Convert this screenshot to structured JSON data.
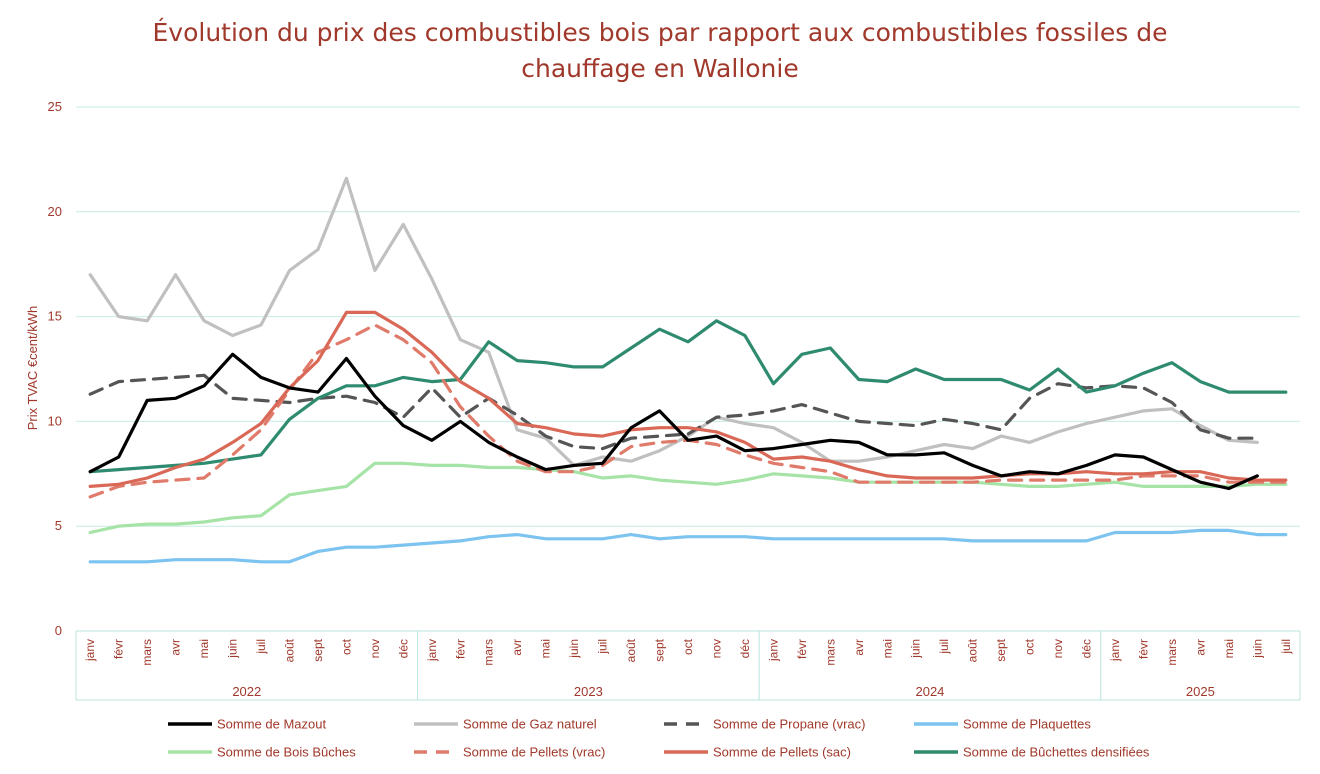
{
  "chart_data": {
    "type": "line",
    "title": "Évolution du prix des combustibles bois par rapport aux combustibles fossiles de chauffage en Wallonie",
    "title_lines": [
      "Évolution du prix des combustibles bois par rapport aux combustibles fossiles de",
      "chauffage en Wallonie"
    ],
    "ylabel": "Prix TVAC €cent/kWh",
    "xlabel": "",
    "ylim": [
      0,
      25
    ],
    "yticks": [
      "0",
      "5",
      "10",
      "15",
      "20",
      "25"
    ],
    "grid": true,
    "legend_position": "bottom",
    "months": [
      "janv",
      "févr",
      "mars",
      "avr",
      "mai",
      "juin",
      "juil",
      "août",
      "sept",
      "oct",
      "nov",
      "déc",
      "janv",
      "févr",
      "mars",
      "avr",
      "mai",
      "juin",
      "juil",
      "août",
      "sept",
      "oct",
      "nov",
      "déc",
      "janv",
      "févr",
      "mars",
      "avr",
      "mai",
      "juin",
      "juil",
      "août",
      "sept",
      "oct",
      "nov",
      "déc",
      "janv",
      "févr",
      "mars",
      "avr",
      "mai",
      "juin",
      "juil"
    ],
    "years": [
      {
        "label": "2022",
        "count": 12
      },
      {
        "label": "2023",
        "count": 12
      },
      {
        "label": "2024",
        "count": 12
      },
      {
        "label": "2025",
        "count": 7
      }
    ],
    "series": [
      {
        "name": "Somme de Mazout",
        "color": "#000000",
        "dash": false,
        "values": [
          7.6,
          8.3,
          11.0,
          11.1,
          11.7,
          13.2,
          12.1,
          11.6,
          11.4,
          13.0,
          11.2,
          9.8,
          9.1,
          10.0,
          9.0,
          8.3,
          7.7,
          7.9,
          8.0,
          9.7,
          10.5,
          9.1,
          9.3,
          8.6,
          8.7,
          8.9,
          9.1,
          9.0,
          8.4,
          8.4,
          8.5,
          7.9,
          7.4,
          7.6,
          7.5,
          7.9,
          8.4,
          8.3,
          7.7,
          7.1,
          6.8,
          7.4,
          null
        ]
      },
      {
        "name": "Somme de Gaz naturel",
        "color": "#c0c0c0",
        "dash": false,
        "values": [
          17.0,
          15.0,
          14.8,
          17.0,
          14.8,
          14.1,
          14.6,
          17.2,
          18.2,
          21.6,
          17.2,
          19.4,
          16.8,
          13.9,
          13.3,
          9.6,
          9.2,
          7.9,
          8.3,
          8.1,
          8.6,
          9.3,
          10.2,
          9.9,
          9.7,
          9.0,
          8.1,
          8.1,
          8.3,
          8.6,
          8.9,
          8.7,
          9.3,
          9.0,
          9.5,
          9.9,
          10.2,
          10.5,
          10.6,
          9.8,
          9.1,
          9.0,
          null
        ]
      },
      {
        "name": "Somme de Propane (vrac)",
        "color": "#555555",
        "dash": true,
        "values": [
          11.3,
          11.9,
          12.0,
          12.1,
          12.2,
          11.1,
          11.0,
          10.9,
          11.1,
          11.2,
          10.9,
          10.2,
          11.6,
          10.2,
          11.1,
          10.3,
          9.3,
          8.8,
          8.7,
          9.2,
          9.3,
          9.4,
          10.2,
          10.3,
          10.5,
          10.8,
          10.4,
          10.0,
          9.9,
          9.8,
          10.1,
          9.9,
          9.6,
          11.1,
          11.8,
          11.6,
          11.7,
          11.6,
          10.9,
          9.6,
          9.2,
          9.2,
          null
        ]
      },
      {
        "name": "Somme de Plaquettes",
        "color": "#7cc3f0",
        "dash": false,
        "values": [
          3.3,
          3.3,
          3.3,
          3.4,
          3.4,
          3.4,
          3.3,
          3.3,
          3.8,
          4.0,
          4.0,
          4.1,
          4.2,
          4.3,
          4.5,
          4.6,
          4.4,
          4.4,
          4.4,
          4.6,
          4.4,
          4.5,
          4.5,
          4.5,
          4.4,
          4.4,
          4.4,
          4.4,
          4.4,
          4.4,
          4.4,
          4.3,
          4.3,
          4.3,
          4.3,
          4.3,
          4.7,
          4.7,
          4.7,
          4.8,
          4.8,
          4.6,
          4.6
        ]
      },
      {
        "name": "Somme de Bois Bûches",
        "color": "#a6e3a6",
        "dash": false,
        "values": [
          4.7,
          5.0,
          5.1,
          5.1,
          5.2,
          5.4,
          5.5,
          6.5,
          6.7,
          6.9,
          8.0,
          8.0,
          7.9,
          7.9,
          7.8,
          7.8,
          7.7,
          7.6,
          7.3,
          7.4,
          7.2,
          7.1,
          7.0,
          7.2,
          7.5,
          7.4,
          7.3,
          7.1,
          7.1,
          7.1,
          7.1,
          7.1,
          7.0,
          6.9,
          6.9,
          7.0,
          7.1,
          6.9,
          6.9,
          6.9,
          6.9,
          7.0,
          7.0
        ]
      },
      {
        "name": "Somme de Pellets (vrac)",
        "color": "#e07a6a",
        "dash": true,
        "values": [
          6.4,
          6.9,
          7.1,
          7.2,
          7.3,
          8.4,
          9.6,
          11.5,
          13.3,
          13.9,
          14.6,
          13.9,
          12.8,
          10.7,
          9.3,
          8.1,
          7.6,
          7.6,
          7.9,
          8.8,
          9.0,
          9.1,
          8.9,
          8.4,
          8.0,
          7.8,
          7.6,
          7.1,
          7.1,
          7.1,
          7.1,
          7.1,
          7.2,
          7.2,
          7.2,
          7.2,
          7.2,
          7.4,
          7.4,
          7.4,
          7.1,
          7.1,
          7.1
        ]
      },
      {
        "name": "Somme de Pellets (sac)",
        "color": "#d96856",
        "dash": false,
        "values": [
          6.9,
          7.0,
          7.3,
          7.8,
          8.2,
          9.0,
          9.9,
          11.6,
          12.9,
          15.2,
          15.2,
          14.4,
          13.3,
          11.9,
          11.1,
          9.9,
          9.7,
          9.4,
          9.3,
          9.6,
          9.7,
          9.7,
          9.5,
          9.0,
          8.2,
          8.3,
          8.1,
          7.7,
          7.4,
          7.3,
          7.3,
          7.3,
          7.4,
          7.5,
          7.5,
          7.6,
          7.5,
          7.5,
          7.6,
          7.6,
          7.3,
          7.2,
          7.2
        ]
      },
      {
        "name": "Somme de Bûchettes densifiées",
        "color": "#2e8b6f",
        "dash": false,
        "values": [
          7.6,
          7.7,
          7.8,
          7.9,
          8.0,
          8.2,
          8.4,
          10.1,
          11.1,
          11.7,
          11.7,
          12.1,
          11.9,
          12.0,
          13.8,
          12.9,
          12.8,
          12.6,
          12.6,
          13.5,
          14.4,
          13.8,
          14.8,
          14.1,
          11.8,
          13.2,
          13.5,
          12.0,
          11.9,
          12.5,
          12.0,
          12.0,
          12.0,
          11.5,
          12.5,
          11.4,
          11.7,
          12.3,
          12.8,
          11.9,
          11.4,
          11.4,
          11.4
        ]
      }
    ]
  }
}
